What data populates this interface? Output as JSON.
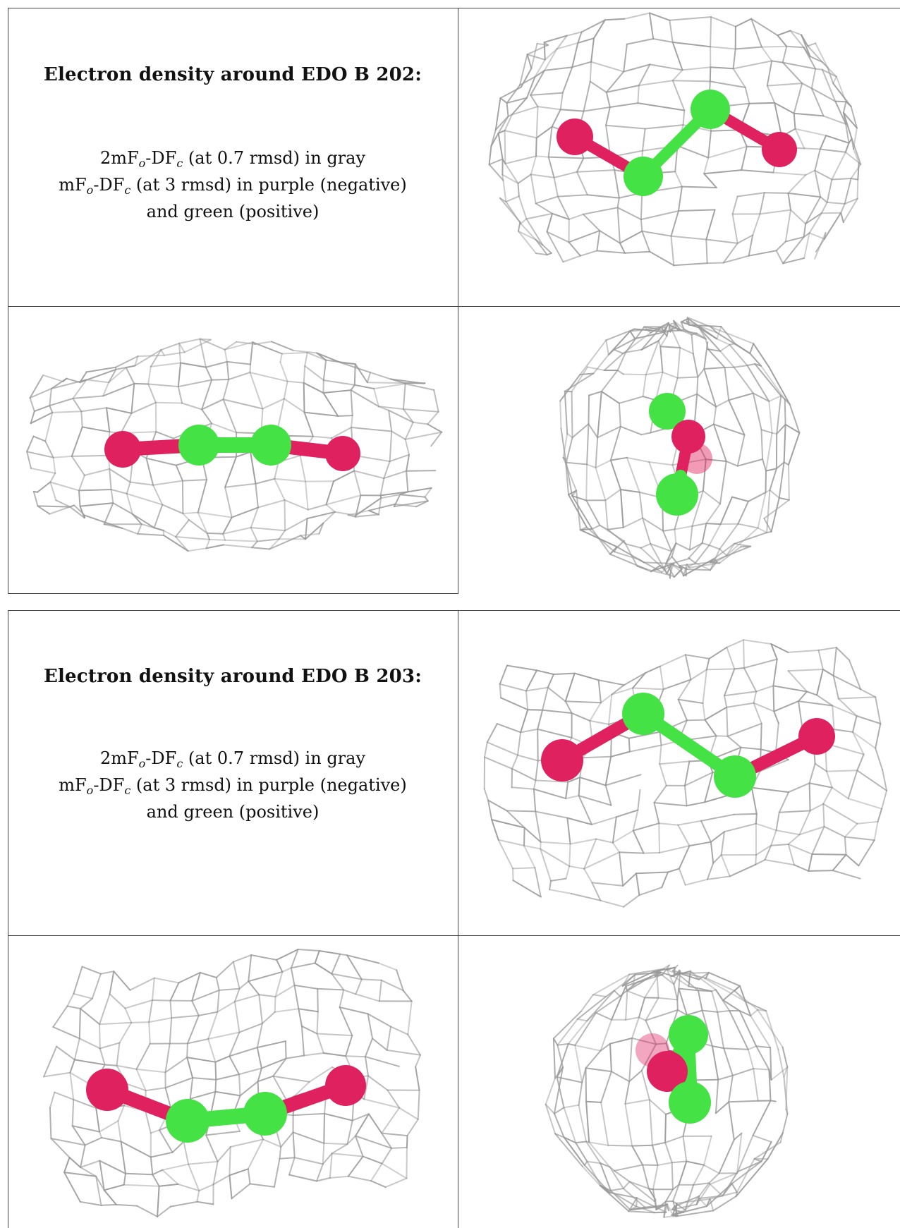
{
  "panels": [
    {
      "title": "Electron density around EDO B 202:",
      "line1": {
        "pre": "2mF",
        "s1": "o",
        "mid": "-DF",
        "s2": "c",
        "post": " (at 0.7 rmsd) in gray"
      },
      "line2": {
        "pre": "mF",
        "s1": "o",
        "mid": "-DF",
        "s2": "c",
        "post": " (at 3 rmsd) in purple (negative)"
      },
      "line3": "and green (positive)"
    },
    {
      "title": "Electron density around EDO B 203:",
      "line1": {
        "pre": "2mF",
        "s1": "o",
        "mid": "-DF",
        "s2": "c",
        "post": " (at 0.7 rmsd) in gray"
      },
      "line2": {
        "pre": "mF",
        "s1": "o",
        "mid": "-DF",
        "s2": "c",
        "post": " (at 3 rmsd) in purple (negative)"
      },
      "line3": "and green (positive)"
    }
  ],
  "colors": {
    "oxygen": "#e0215f",
    "carbon": "#44e244",
    "mesh": "#9a9a9a",
    "border": "#444444"
  }
}
